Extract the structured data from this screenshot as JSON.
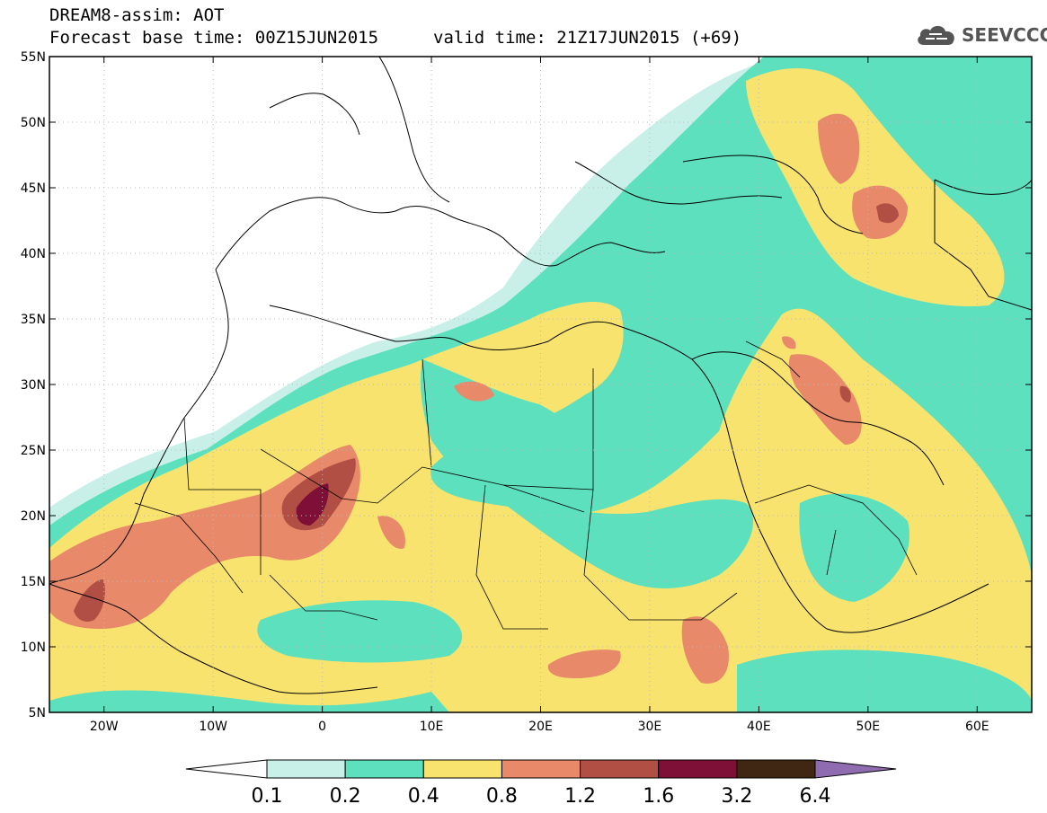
{
  "header": {
    "title": "DREAM8-assim: AOT",
    "base_time": "Forecast base time: 00Z15JUN2015",
    "valid_time": "valid time: 21Z17JUN2015 (+69)"
  },
  "logo": {
    "text": "SEEVCCC",
    "icon": "cloud-icon"
  },
  "map": {
    "lat_labels": [
      "55N",
      "50N",
      "45N",
      "40N",
      "35N",
      "30N",
      "25N",
      "20N",
      "15N",
      "10N",
      "5N"
    ],
    "lon_labels": [
      "20W",
      "10W",
      "0",
      "10E",
      "20E",
      "30E",
      "40E",
      "50E",
      "60E"
    ],
    "lat_values": [
      55,
      50,
      45,
      40,
      35,
      30,
      25,
      20,
      15,
      10,
      5
    ],
    "lon_values": [
      -20,
      -10,
      0,
      10,
      20,
      30,
      40,
      50,
      60
    ],
    "extent": {
      "lon_min": -25,
      "lon_max": 65,
      "lat_min": 5,
      "lat_max": 55
    }
  },
  "colorbar": {
    "labels": [
      "0.1",
      "0.2",
      "0.4",
      "0.8",
      "1.2",
      "1.6",
      "3.2",
      "6.4"
    ],
    "bins": [
      {
        "from": 0.1,
        "to": 0.2,
        "color": "#c8f0e8"
      },
      {
        "from": 0.2,
        "to": 0.4,
        "color": "#5de0bd"
      },
      {
        "from": 0.4,
        "to": 0.8,
        "color": "#f7e36e"
      },
      {
        "from": 0.8,
        "to": 1.2,
        "color": "#e8896a"
      },
      {
        "from": 1.2,
        "to": 1.6,
        "color": "#b14f44"
      },
      {
        "from": 1.6,
        "to": 3.2,
        "color": "#7e0f37"
      },
      {
        "from": 3.2,
        "to": 6.4,
        "color": "#3f2713"
      }
    ],
    "under_color": "#ffffff",
    "over_color": "#8f6bb0"
  }
}
